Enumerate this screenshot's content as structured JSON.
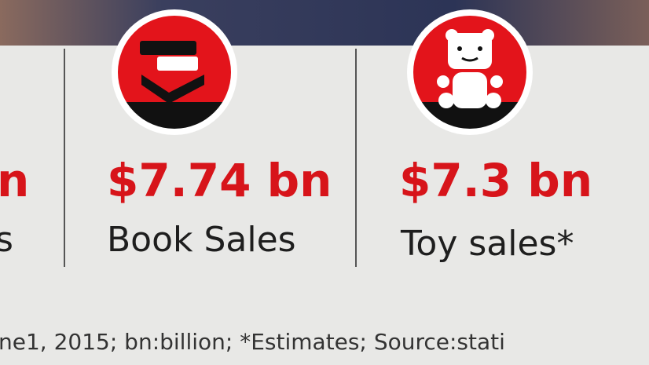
{
  "partial_item": {
    "value": "n",
    "label": "s"
  },
  "items": [
    {
      "value": "$7.74 bn",
      "label": "Book Sales"
    },
    {
      "value": "$7.3 bn",
      "label": "Toy sales*"
    }
  ],
  "footer": "ne1, 2015; bn:billion; *Estimates; Source:stati"
}
